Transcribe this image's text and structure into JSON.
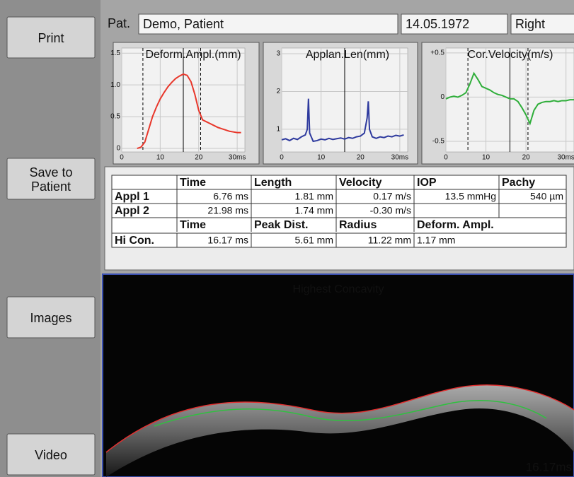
{
  "buttons": [
    "Print",
    "Save to\nPatient",
    "Images",
    "Video"
  ],
  "patient": {
    "label": "Pat.",
    "name": "Demo, Patient",
    "dob": "14.05.1972",
    "eye": "Right"
  },
  "chart_data": [
    {
      "type": "line",
      "title": "Deform.Ampl.(mm)",
      "x": [
        4,
        5,
        6,
        7,
        8,
        9,
        10,
        11,
        12,
        13,
        14,
        15,
        16,
        17,
        18,
        19,
        20,
        21,
        22,
        23,
        24,
        25,
        26,
        27,
        28,
        29,
        30,
        31
      ],
      "series": [
        {
          "color": "#e8372b",
          "values": [
            0,
            0.02,
            0.1,
            0.3,
            0.5,
            0.65,
            0.78,
            0.88,
            0.97,
            1.04,
            1.1,
            1.14,
            1.17,
            1.15,
            1.05,
            0.85,
            0.6,
            0.45,
            0.42,
            0.39,
            0.36,
            0.33,
            0.31,
            0.29,
            0.27,
            0.26,
            0.25,
            0.25
          ]
        }
      ],
      "xlim": [
        0,
        32
      ],
      "ylim": [
        -0.055,
        1.58
      ],
      "xticks": [
        0,
        10,
        20,
        {
          "value": 30,
          "label": "30ms"
        }
      ],
      "yticks": [
        0,
        {
          "value": 0.5,
          "label": "0.5"
        },
        {
          "value": 1,
          "label": "1.0"
        },
        {
          "value": 1.5,
          "label": "1.5"
        }
      ],
      "dashed_x": [
        5.5,
        20.5
      ],
      "solid_x": 16
    },
    {
      "type": "line",
      "title": "Applan.Len(mm)",
      "x": [
        0,
        1,
        2,
        3,
        4,
        5,
        6,
        6.5,
        6.8,
        7.1,
        8,
        9,
        10,
        11,
        12,
        13,
        14,
        15,
        16,
        17,
        18,
        19,
        20,
        21,
        21.7,
        22,
        22.3,
        23,
        24,
        25,
        26,
        27,
        28,
        29,
        30,
        31
      ],
      "series": [
        {
          "color": "#2e3a9e",
          "values": [
            0.72,
            0.75,
            0.7,
            0.76,
            0.73,
            0.8,
            0.85,
            1.0,
            1.81,
            0.9,
            0.68,
            0.7,
            0.74,
            0.72,
            0.76,
            0.73,
            0.75,
            0.77,
            0.74,
            0.78,
            0.76,
            0.8,
            0.82,
            0.9,
            1.3,
            1.74,
            1.0,
            0.8,
            0.76,
            0.8,
            0.78,
            0.82,
            0.8,
            0.84,
            0.82,
            0.85
          ]
        }
      ],
      "xlim": [
        0,
        32
      ],
      "ylim": [
        0.4,
        3.15
      ],
      "xticks": [
        0,
        10,
        20,
        {
          "value": 30,
          "label": "30ms"
        }
      ],
      "yticks": [
        1,
        2,
        3
      ],
      "solid_x": 16
    },
    {
      "type": "line",
      "title": "Cor.Velocity(m/s)",
      "x": [
        0,
        1,
        2,
        3,
        4,
        5,
        6,
        7,
        8,
        9,
        10,
        11,
        12,
        13,
        14,
        15,
        16,
        17,
        18,
        19,
        20,
        21,
        22,
        23,
        24,
        25,
        26,
        27,
        28,
        29,
        30,
        31,
        32
      ],
      "series": [
        {
          "color": "#2fae3a",
          "values": [
            -0.02,
            0,
            0.01,
            0,
            0.02,
            0.05,
            0.15,
            0.27,
            0.2,
            0.12,
            0.1,
            0.08,
            0.05,
            0.03,
            0.02,
            0,
            -0.02,
            -0.02,
            -0.05,
            -0.12,
            -0.2,
            -0.3,
            -0.15,
            -0.08,
            -0.06,
            -0.05,
            -0.05,
            -0.04,
            -0.05,
            -0.04,
            -0.04,
            -0.03,
            -0.03
          ]
        }
      ],
      "xlim": [
        0,
        32
      ],
      "ylim": [
        -0.62,
        0.555
      ],
      "xticks": [
        0,
        10,
        20,
        {
          "value": 30,
          "label": "30ms"
        }
      ],
      "yticks": [
        {
          "value": -0.5,
          "label": "-0.5"
        },
        0,
        {
          "value": 0.5,
          "label": "+0.5"
        }
      ],
      "dashed_x": [
        5.5,
        20.5
      ],
      "solid_x": 16
    }
  ],
  "table": {
    "rows": [
      [
        null,
        "Time",
        "Length",
        "Velocity",
        "IOP",
        "Pachy"
      ],
      [
        "Appl 1",
        "6.76 ms",
        "1.81 mm",
        "0.17 m/s",
        "13.5 mmHg",
        "540 µm"
      ],
      [
        "Appl 2",
        "21.98 ms",
        "1.74 mm",
        "-0.30 m/s",
        null,
        null
      ],
      [
        null,
        "Time",
        "Peak Dist.",
        "Radius",
        "Deform. Ampl."
      ],
      [
        "Hi Con.",
        "16.17 ms",
        "5.61 mm",
        "11.22 mm",
        "1.17 mm"
      ]
    ]
  },
  "image": {
    "title": "Highest Concavity",
    "time": "16.17ms"
  }
}
